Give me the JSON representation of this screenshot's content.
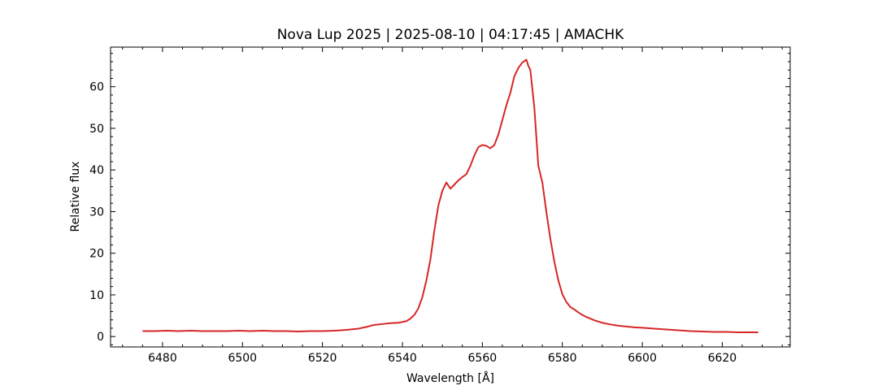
{
  "chart_data": {
    "type": "line",
    "title": "Nova Lup 2025 | 2025-08-10 | 04:17:45 | AMACHK",
    "xlabel": "Wavelength [Å]",
    "ylabel": "Relative flux",
    "xlim": [
      6467,
      6637
    ],
    "ylim": [
      -2.5,
      69.5
    ],
    "xticks": [
      6480,
      6500,
      6520,
      6540,
      6560,
      6580,
      6600,
      6620
    ],
    "yticks": [
      0,
      10,
      20,
      30,
      40,
      50,
      60
    ],
    "grid": false,
    "line_color": "#d62728",
    "series": [
      {
        "x": [
          6475,
          6478,
          6481,
          6484,
          6487,
          6490,
          6493,
          6496,
          6499,
          6502,
          6505,
          6508,
          6511,
          6514,
          6517,
          6520,
          6523,
          6526,
          6529,
          6531,
          6533,
          6535,
          6537,
          6539,
          6541,
          6542,
          6543,
          6544,
          6545,
          6546,
          6547,
          6548,
          6549,
          6550,
          6551,
          6552,
          6553,
          6554,
          6555,
          6556,
          6557,
          6558,
          6559,
          6560,
          6561,
          6562,
          6563,
          6564,
          6565,
          6566,
          6567,
          6568,
          6569,
          6570,
          6571,
          6571.5,
          6572,
          6573,
          6574,
          6575,
          6576,
          6577,
          6578,
          6579,
          6580,
          6581,
          6582,
          6583,
          6584,
          6585,
          6586,
          6588,
          6590,
          6592,
          6594,
          6596,
          6598,
          6600,
          6603,
          6606,
          6609,
          6612,
          6615,
          6618,
          6621,
          6624,
          6627,
          6629
        ],
        "y": [
          1.3,
          1.3,
          1.4,
          1.3,
          1.4,
          1.3,
          1.3,
          1.3,
          1.4,
          1.3,
          1.4,
          1.3,
          1.3,
          1.2,
          1.3,
          1.3,
          1.4,
          1.6,
          1.9,
          2.3,
          2.8,
          3.0,
          3.2,
          3.3,
          3.7,
          4.3,
          5.2,
          6.8,
          9.5,
          13.5,
          18.5,
          25.5,
          31.5,
          35.0,
          37.0,
          35.5,
          36.5,
          37.5,
          38.3,
          39.0,
          41.0,
          43.5,
          45.5,
          46.0,
          45.8,
          45.2,
          46.0,
          48.5,
          52.0,
          55.5,
          58.5,
          62.5,
          64.5,
          65.8,
          66.5,
          65.0,
          64.0,
          55.0,
          41.0,
          37.0,
          30.0,
          23.5,
          18.0,
          13.5,
          10.2,
          8.3,
          7.1,
          6.5,
          5.8,
          5.2,
          4.7,
          3.9,
          3.3,
          2.9,
          2.6,
          2.4,
          2.2,
          2.1,
          1.9,
          1.7,
          1.5,
          1.3,
          1.2,
          1.1,
          1.1,
          1.0,
          1.0,
          1.0
        ]
      }
    ]
  }
}
